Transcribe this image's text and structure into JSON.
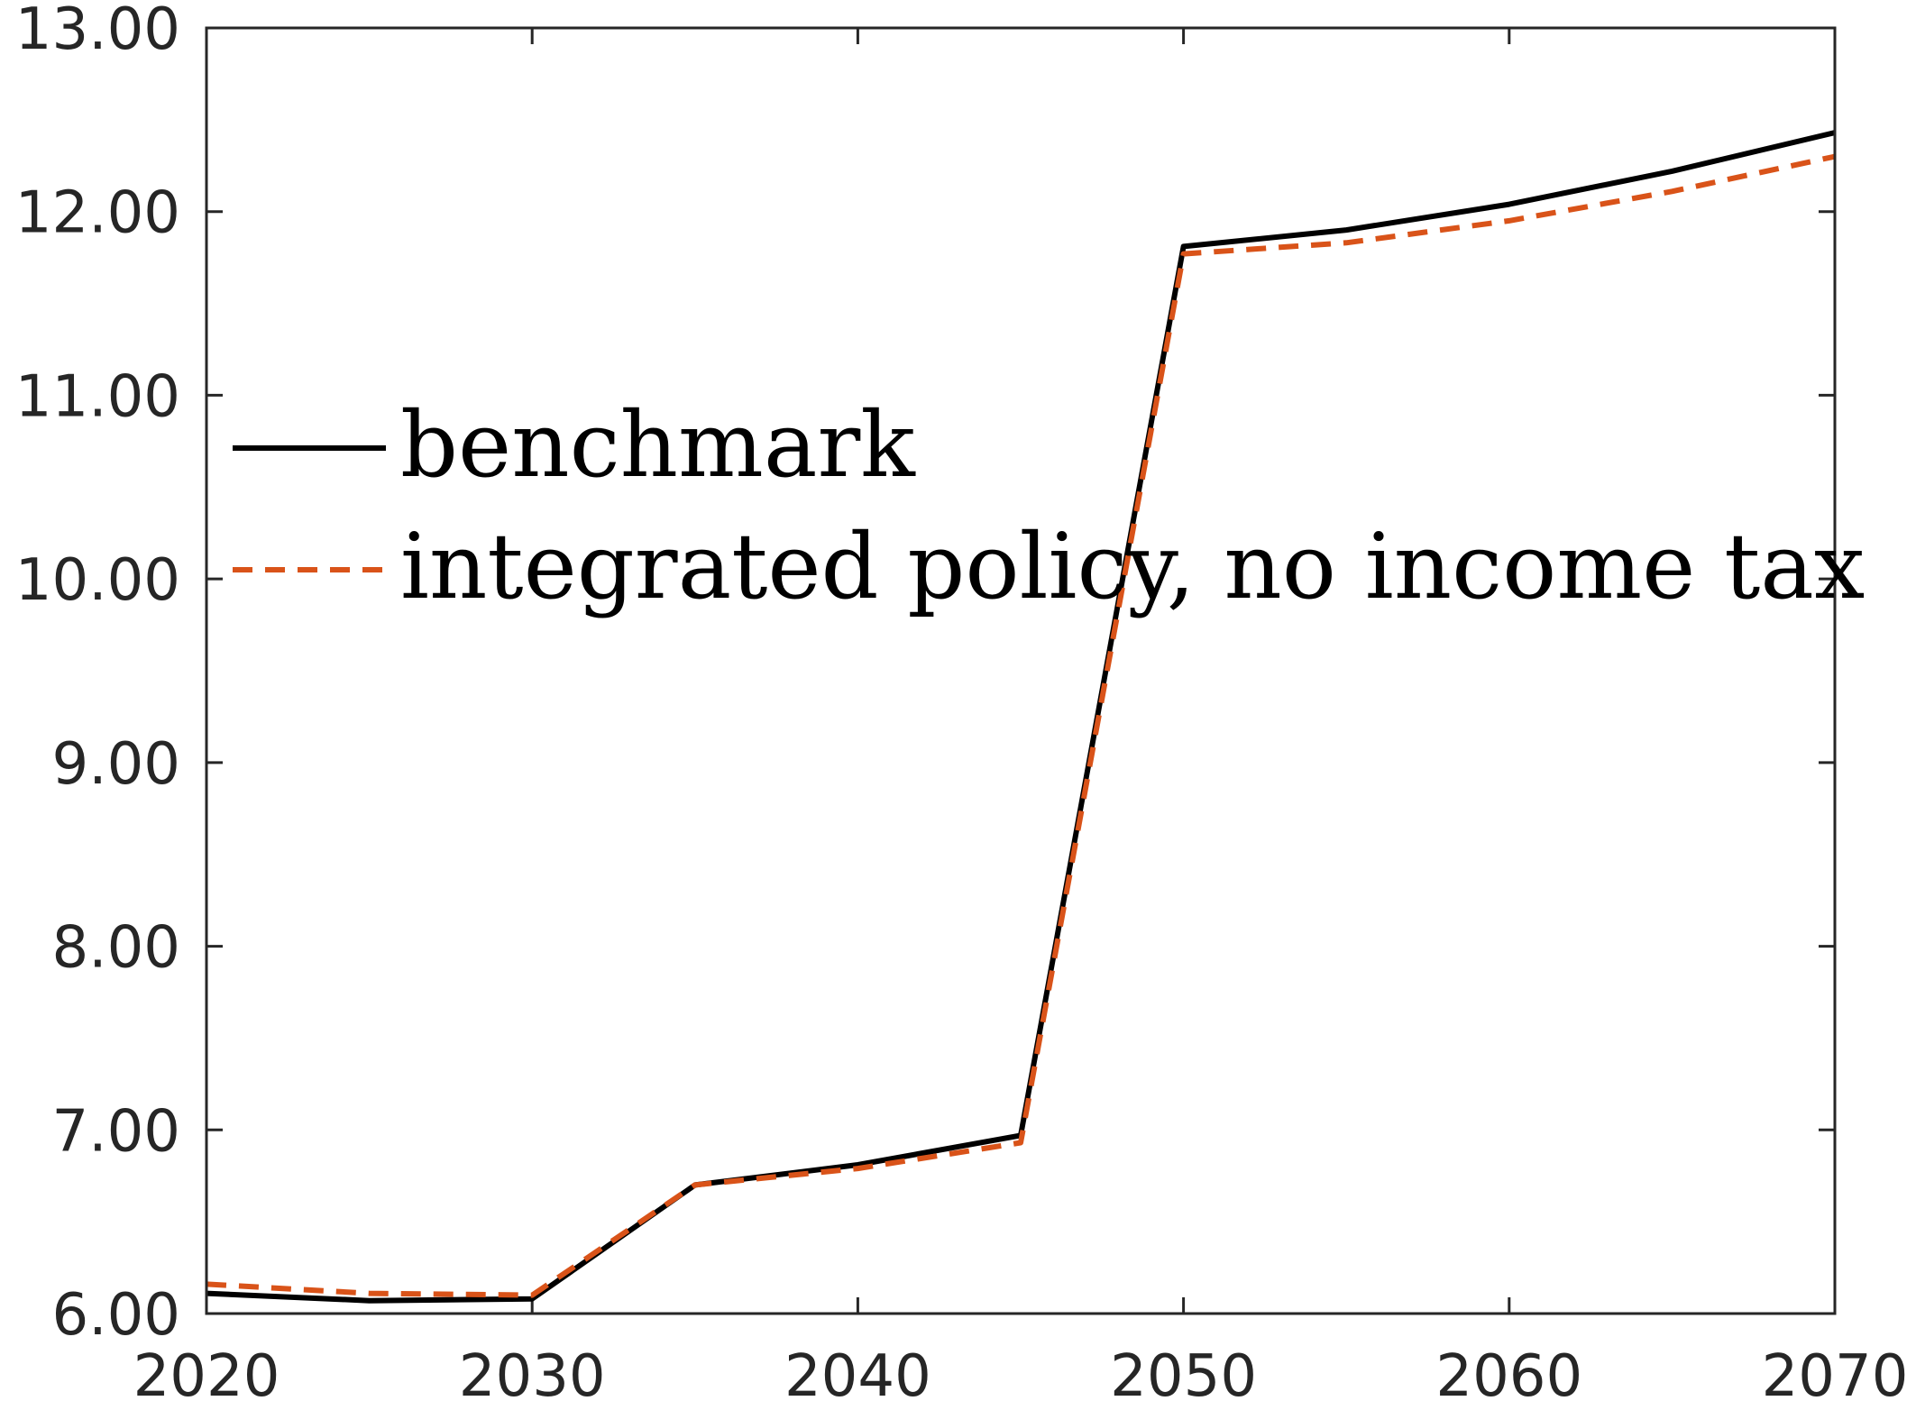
{
  "chart_data": {
    "type": "line",
    "x": [
      2020,
      2025,
      2030,
      2035,
      2040,
      2045,
      2050,
      2055,
      2060,
      2065,
      2070
    ],
    "series": [
      {
        "name": "benchmark",
        "color": "#000000",
        "style": "solid",
        "values": [
          6.11,
          6.07,
          6.08,
          6.7,
          6.81,
          6.97,
          11.81,
          11.9,
          12.04,
          12.22,
          12.43
        ]
      },
      {
        "name": "integrated policy, no income tax",
        "color": "#D95319",
        "style": "dashed",
        "values": [
          6.16,
          6.11,
          6.1,
          6.7,
          6.79,
          6.93,
          11.77,
          11.83,
          11.95,
          12.11,
          12.3
        ]
      }
    ],
    "xlim": [
      2020,
      2070
    ],
    "ylim": [
      6,
      13
    ],
    "xticks": [
      "2020",
      "2030",
      "2040",
      "2050",
      "2060",
      "2070"
    ],
    "yticks": [
      "6.00",
      "7.00",
      "8.00",
      "9.00",
      "10.00",
      "11.00",
      "12.00",
      "13.00"
    ],
    "grid": false,
    "legend_position": "left-center",
    "title": "",
    "xlabel": "",
    "ylabel": ""
  }
}
